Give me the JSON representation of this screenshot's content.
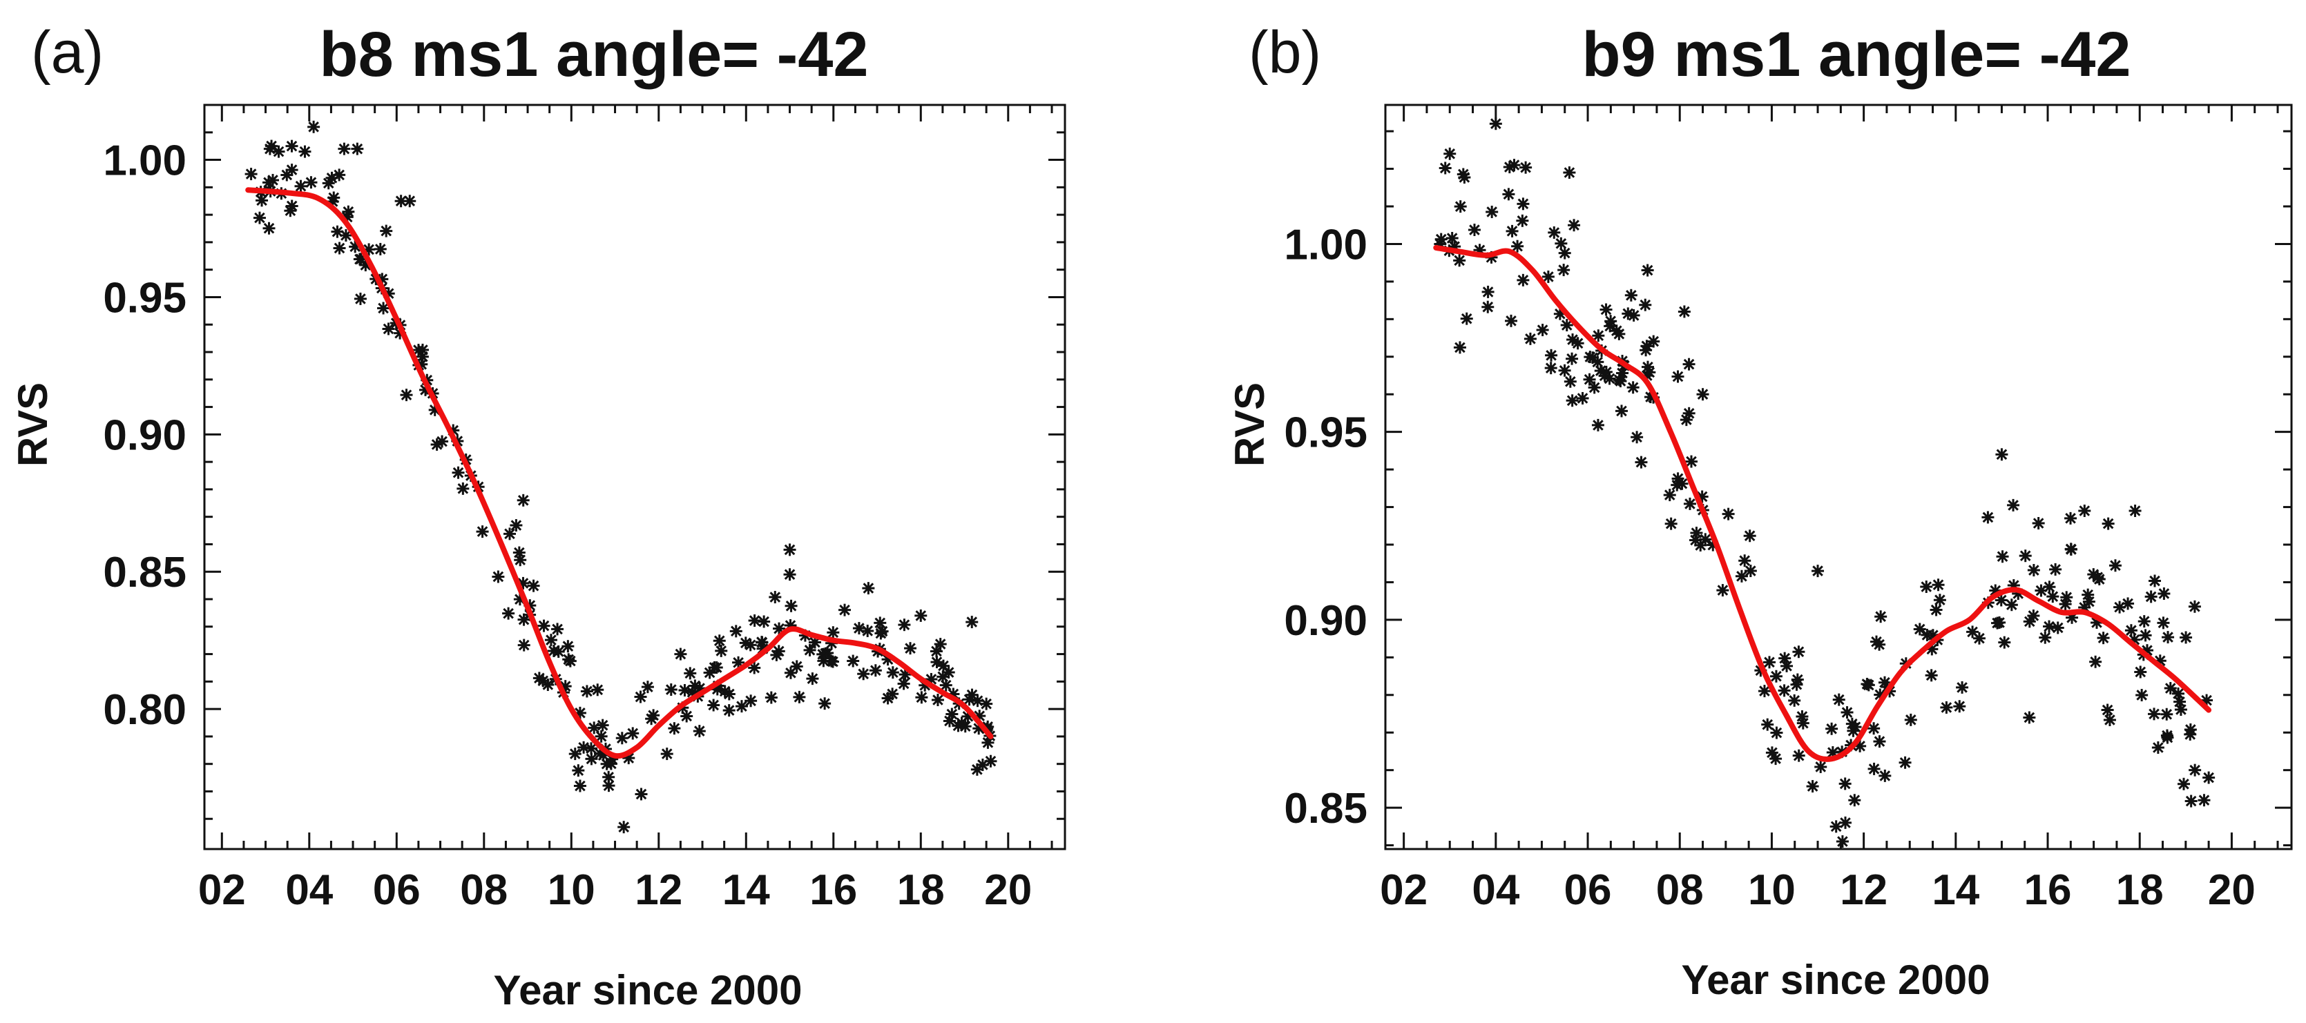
{
  "colors": {
    "axes": "#111111",
    "markers": "#111111"
  },
  "chart_data": [
    {
      "type": "scatter",
      "panel_label": "(a)",
      "title": "b8  ms1 angle= -42",
      "xlabel": "Year since 2000",
      "ylabel": "RVS",
      "xlim": [
        1.6,
        21.3
      ],
      "ylim": [
        0.749,
        1.02
      ],
      "xticks": [
        2,
        4,
        6,
        8,
        10,
        12,
        14,
        16,
        18,
        20
      ],
      "xtick_labels": [
        "02",
        "04",
        "06",
        "08",
        "10",
        "12",
        "14",
        "16",
        "18",
        "20"
      ],
      "yticks": [
        0.8,
        0.85,
        0.9,
        0.95,
        1.0
      ],
      "ytick_labels": [
        "0.80",
        "0.85",
        "0.90",
        "0.95",
        "1.00"
      ],
      "marker": "asterisk",
      "fit_color": "#ee1111",
      "fit": {
        "x": [
          2.6,
          3.5,
          4.2,
          4.8,
          5.4,
          6.0,
          6.6,
          7.2,
          7.8,
          8.4,
          9.0,
          9.5,
          10.0,
          10.5,
          11.0,
          11.5,
          12.0,
          12.5,
          13.0,
          13.5,
          14.0,
          14.5,
          15.0,
          15.5,
          16.0,
          16.5,
          17.0,
          17.5,
          18.0,
          18.5,
          19.0,
          19.6
        ],
        "y": [
          0.989,
          0.988,
          0.986,
          0.978,
          0.962,
          0.942,
          0.921,
          0.902,
          0.882,
          0.86,
          0.837,
          0.817,
          0.8,
          0.789,
          0.783,
          0.786,
          0.794,
          0.801,
          0.806,
          0.811,
          0.816,
          0.822,
          0.829,
          0.827,
          0.825,
          0.824,
          0.822,
          0.817,
          0.811,
          0.806,
          0.801,
          0.79
        ]
      },
      "seed": 7,
      "noise": 0.009,
      "n_points": 220,
      "points": [
        {
          "x": 3.1,
          "y": 1.004
        },
        {
          "x": 3.3,
          "y": 1.003
        },
        {
          "x": 3.6,
          "y": 1.005
        },
        {
          "x": 3.9,
          "y": 1.003
        },
        {
          "x": 4.1,
          "y": 1.012
        },
        {
          "x": 4.8,
          "y": 1.004
        },
        {
          "x": 5.1,
          "y": 1.004
        },
        {
          "x": 6.1,
          "y": 0.985
        },
        {
          "x": 6.3,
          "y": 0.985
        },
        {
          "x": 8.9,
          "y": 0.876
        },
        {
          "x": 11.2,
          "y": 0.757
        },
        {
          "x": 11.6,
          "y": 0.769
        },
        {
          "x": 15.0,
          "y": 0.858
        },
        {
          "x": 15.0,
          "y": 0.849
        },
        {
          "x": 15.8,
          "y": 0.802
        },
        {
          "x": 16.8,
          "y": 0.844
        },
        {
          "x": 18.0,
          "y": 0.834
        },
        {
          "x": 13.9,
          "y": 0.801
        },
        {
          "x": 10.6,
          "y": 0.807
        },
        {
          "x": 10.2,
          "y": 0.772
        },
        {
          "x": 19.6,
          "y": 0.781
        },
        {
          "x": 7.7,
          "y": 0.885
        },
        {
          "x": 12.5,
          "y": 0.82
        },
        {
          "x": 19.3,
          "y": 0.803
        }
      ]
    },
    {
      "type": "scatter",
      "panel_label": "(b)",
      "title": "b9  ms1 angle= -42",
      "xlabel": "Year since 2000",
      "ylabel": "RVS",
      "xlim": [
        1.6,
        21.3
      ],
      "ylim": [
        0.839,
        1.037
      ],
      "xticks": [
        2,
        4,
        6,
        8,
        10,
        12,
        14,
        16,
        18,
        20
      ],
      "xtick_labels": [
        "02",
        "04",
        "06",
        "08",
        "10",
        "12",
        "14",
        "16",
        "18",
        "20"
      ],
      "yticks": [
        0.85,
        0.9,
        0.95,
        1.0
      ],
      "ytick_labels": [
        "0.85",
        "0.90",
        "0.95",
        "1.00"
      ],
      "marker": "asterisk",
      "fit_color": "#ee1111",
      "fit": {
        "x": [
          2.7,
          3.2,
          3.8,
          4.3,
          4.8,
          5.3,
          5.8,
          6.3,
          6.8,
          7.3,
          7.8,
          8.3,
          8.8,
          9.3,
          9.8,
          10.3,
          10.8,
          11.3,
          11.8,
          12.3,
          12.8,
          13.3,
          13.8,
          14.3,
          14.8,
          15.3,
          15.8,
          16.3,
          16.8,
          17.3,
          17.8,
          18.3,
          18.8,
          19.5
        ],
        "y": [
          0.999,
          0.998,
          0.997,
          0.998,
          0.993,
          0.985,
          0.978,
          0.972,
          0.968,
          0.963,
          0.95,
          0.935,
          0.92,
          0.903,
          0.887,
          0.875,
          0.865,
          0.863,
          0.867,
          0.877,
          0.886,
          0.892,
          0.897,
          0.9,
          0.906,
          0.908,
          0.905,
          0.902,
          0.902,
          0.899,
          0.894,
          0.889,
          0.884,
          0.876
        ]
      },
      "seed": 13,
      "noise": 0.012,
      "n_points": 240,
      "points": [
        {
          "x": 4.0,
          "y": 1.032
        },
        {
          "x": 3.0,
          "y": 1.024
        },
        {
          "x": 4.4,
          "y": 1.021
        },
        {
          "x": 5.6,
          "y": 1.019
        },
        {
          "x": 5.7,
          "y": 1.005
        },
        {
          "x": 7.3,
          "y": 0.993
        },
        {
          "x": 7.0,
          "y": 0.981
        },
        {
          "x": 8.1,
          "y": 0.982
        },
        {
          "x": 8.2,
          "y": 0.968
        },
        {
          "x": 8.5,
          "y": 0.96
        },
        {
          "x": 15.0,
          "y": 0.944
        },
        {
          "x": 16.8,
          "y": 0.929
        },
        {
          "x": 17.9,
          "y": 0.929
        },
        {
          "x": 11.0,
          "y": 0.913
        },
        {
          "x": 11.4,
          "y": 0.845
        },
        {
          "x": 11.6,
          "y": 0.846
        },
        {
          "x": 11.8,
          "y": 0.852
        },
        {
          "x": 19.4,
          "y": 0.852
        },
        {
          "x": 19.5,
          "y": 0.858
        },
        {
          "x": 19.2,
          "y": 0.86
        },
        {
          "x": 18.4,
          "y": 0.866
        },
        {
          "x": 15.6,
          "y": 0.874
        },
        {
          "x": 17.3,
          "y": 0.876
        },
        {
          "x": 12.9,
          "y": 0.862
        }
      ]
    }
  ]
}
